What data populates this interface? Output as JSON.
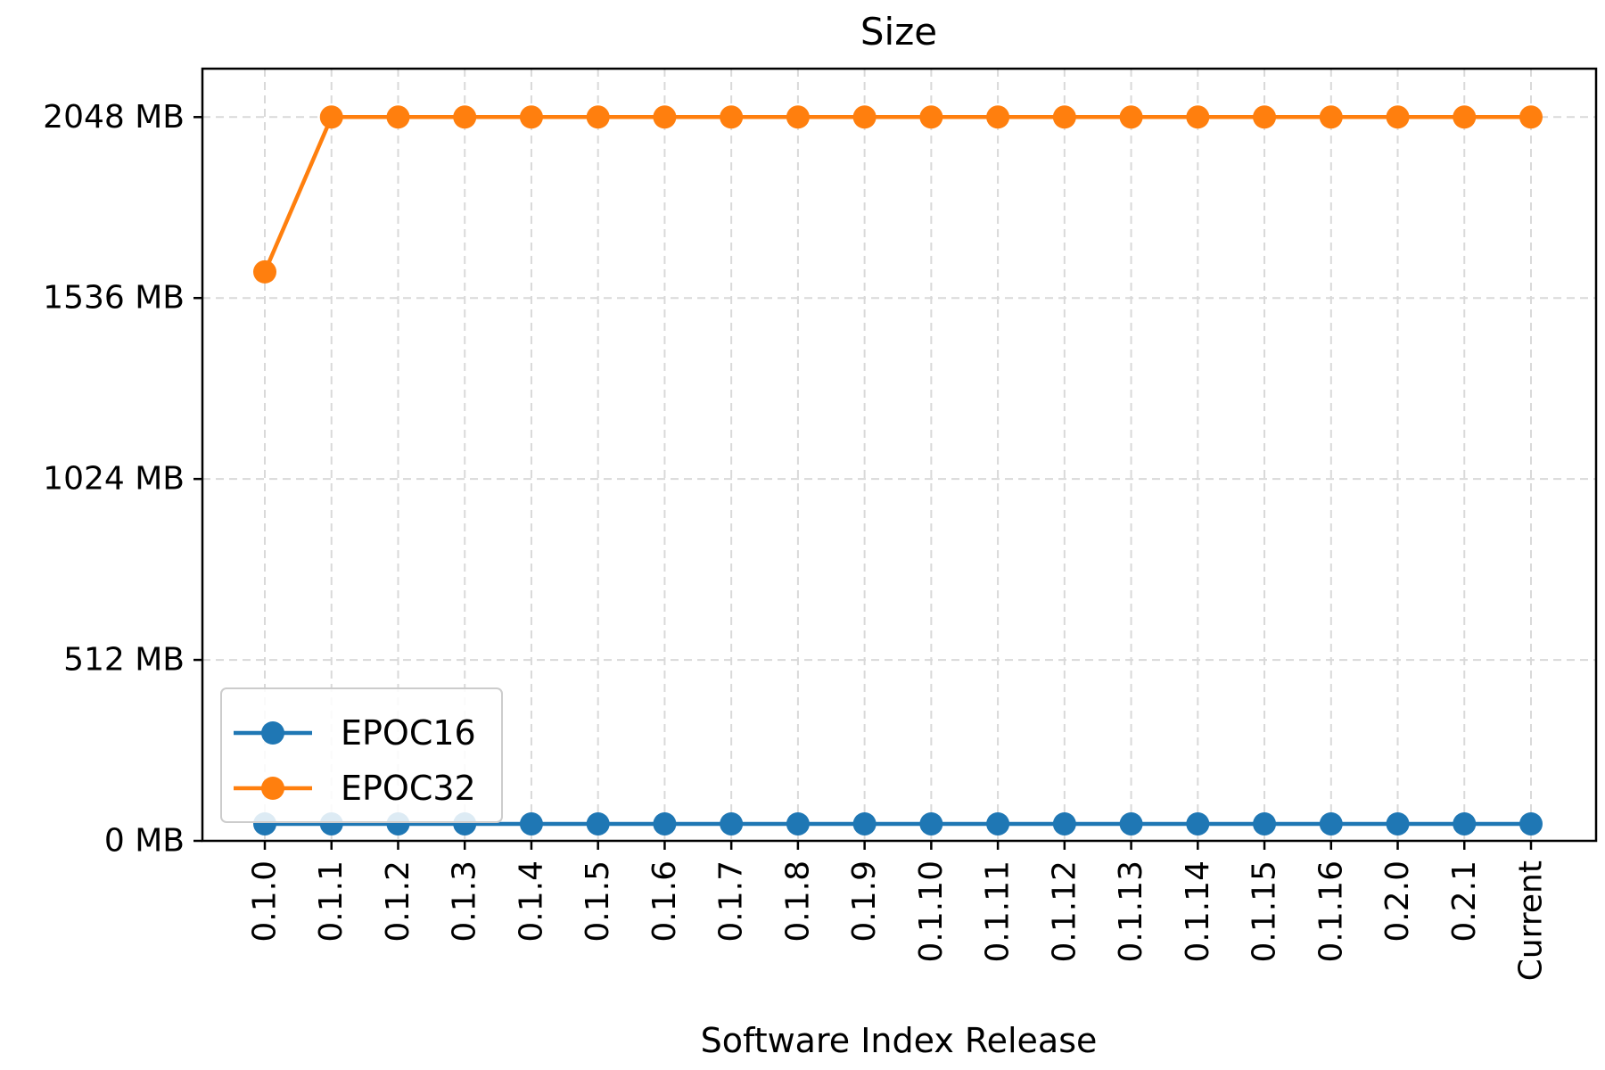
{
  "chart_data": {
    "type": "line",
    "title": "Size",
    "xlabel": "Software Index Release",
    "ylabel": "",
    "categories": [
      "0.1.0",
      "0.1.1",
      "0.1.2",
      "0.1.3",
      "0.1.4",
      "0.1.5",
      "0.1.6",
      "0.1.7",
      "0.1.8",
      "0.1.9",
      "0.1.10",
      "0.1.11",
      "0.1.12",
      "0.1.13",
      "0.1.14",
      "0.1.15",
      "0.1.16",
      "0.2.0",
      "0.2.1",
      "Current"
    ],
    "y_ticks": [
      0,
      512,
      1024,
      1536,
      2048
    ],
    "y_tick_labels": [
      "0 MB",
      "512 MB",
      "1024 MB",
      "1536 MB",
      "2048 MB"
    ],
    "ylim": [
      0,
      2185
    ],
    "grid": true,
    "legend_position": "lower-left",
    "series": [
      {
        "name": "EPOC16",
        "color": "#1f77b4",
        "values": [
          48,
          48,
          48,
          48,
          48,
          48,
          48,
          48,
          48,
          48,
          48,
          48,
          48,
          48,
          48,
          48,
          48,
          48,
          48,
          48
        ]
      },
      {
        "name": "EPOC32",
        "color": "#ff7f0e",
        "values": [
          1610,
          2048,
          2048,
          2048,
          2048,
          2048,
          2048,
          2048,
          2048,
          2048,
          2048,
          2048,
          2048,
          2048,
          2048,
          2048,
          2048,
          2048,
          2048,
          2048
        ]
      }
    ]
  }
}
